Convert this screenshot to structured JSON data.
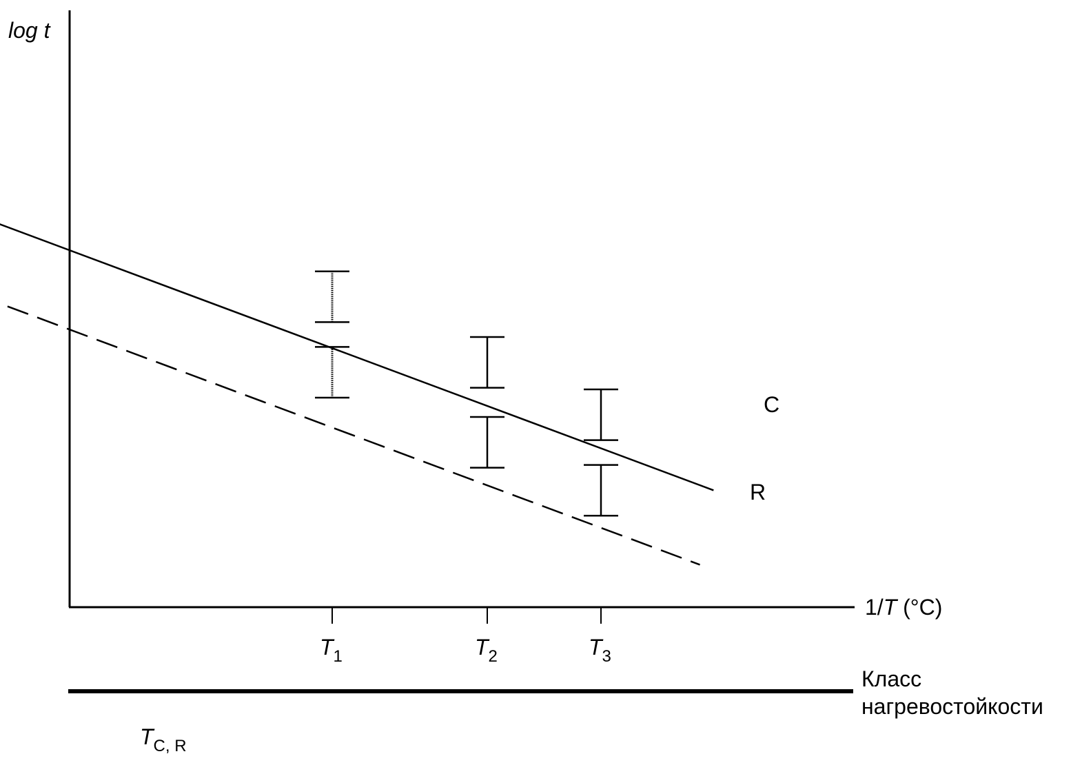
{
  "chart_data": {
    "type": "line",
    "ylabel": "log t",
    "xlabel_prefix": "1/",
    "xlabel_var": "T",
    "xlabel_unit": " (°C)",
    "x_ticks": [
      {
        "base": "T",
        "sub": "1"
      },
      {
        "base": "T",
        "sub": "2"
      },
      {
        "base": "T",
        "sub": "3"
      }
    ],
    "x_tick_positions": [
      1,
      2,
      3
    ],
    "series": [
      {
        "name": "C",
        "style": "solid",
        "line": [
          [
            -1.72,
            7.55
          ],
          [
            3.99,
            2.12
          ]
        ],
        "error_bars": [
          {
            "x": 1,
            "y": 5.63,
            "low": 5.17,
            "high": 6.09
          },
          {
            "x": 2,
            "y": 4.44,
            "low": 3.98,
            "high": 4.9
          },
          {
            "x": 3,
            "y": 3.49,
            "low": 3.03,
            "high": 3.95
          }
        ]
      },
      {
        "name": "R",
        "style": "dashed",
        "line": [
          [
            -1.86,
            6.26
          ],
          [
            3.87,
            0.77
          ]
        ],
        "error_bars": [
          {
            "x": 1,
            "y": 4.26,
            "low": 3.8,
            "high": 4.72
          },
          {
            "x": 2,
            "y": 2.99,
            "low": 2.53,
            "high": 3.45
          },
          {
            "x": 3,
            "y": 2.12,
            "low": 1.66,
            "high": 2.58
          }
        ]
      }
    ],
    "crossing": {
      "x": -1.42,
      "label_base": "T",
      "label_sub": "C, R"
    },
    "scale_label_line1": "Класс",
    "scale_label_line2": "нагревостойкости",
    "xlim": [
      -2.24,
      4.46
    ],
    "ylim": [
      0,
      9.6
    ],
    "grid": false,
    "legend": "none"
  }
}
